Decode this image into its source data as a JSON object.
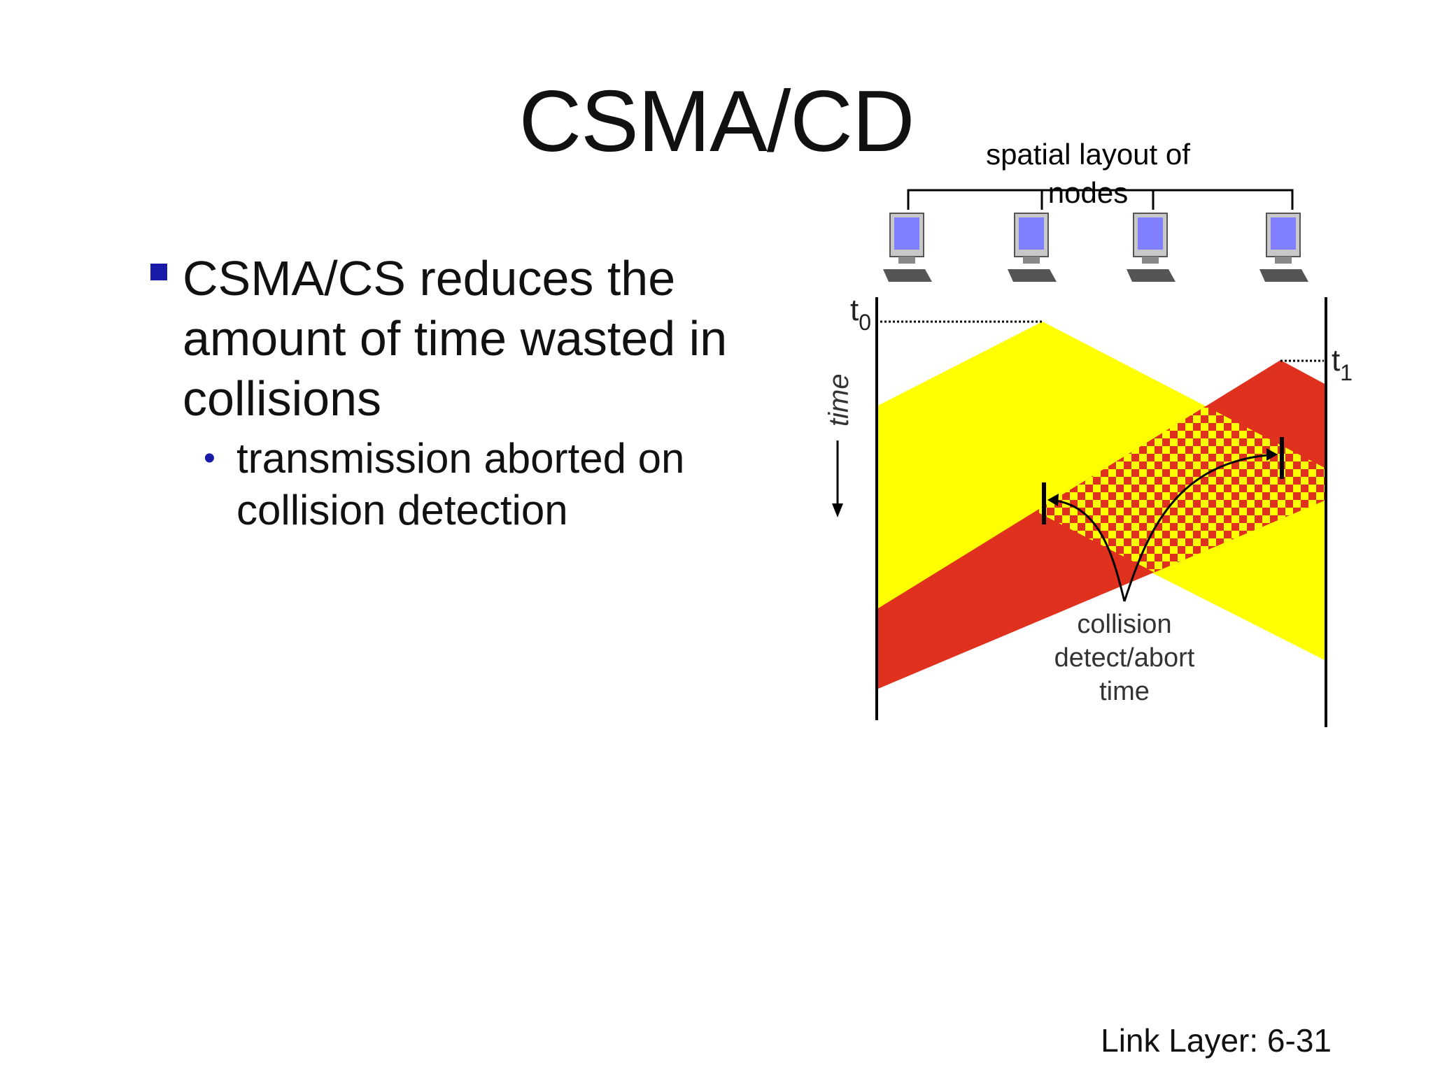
{
  "slide": {
    "title": "CSMA/CD",
    "bullet_main": "CSMA/CS reduces the amount of time wasted in collisions",
    "bullet_sub": "transmission aborted on collision detection",
    "footer": "Link Layer: 6-31"
  },
  "diagram": {
    "layout_label": "spatial layout of nodes",
    "time_label": "time",
    "t0_label": "t",
    "t0_sub": "0",
    "t1_label": "t",
    "t1_sub": "1",
    "collision_label_1": "collision",
    "collision_label_2": "detect/abort",
    "collision_label_3": "time",
    "colors": {
      "yellow": "#ffff00",
      "red": "#e0301e",
      "bullet_blue": "#1a1aa8",
      "computer_screen": "#8080ff"
    },
    "nodes": [
      "computer-1",
      "computer-2",
      "computer-3",
      "computer-4"
    ]
  }
}
